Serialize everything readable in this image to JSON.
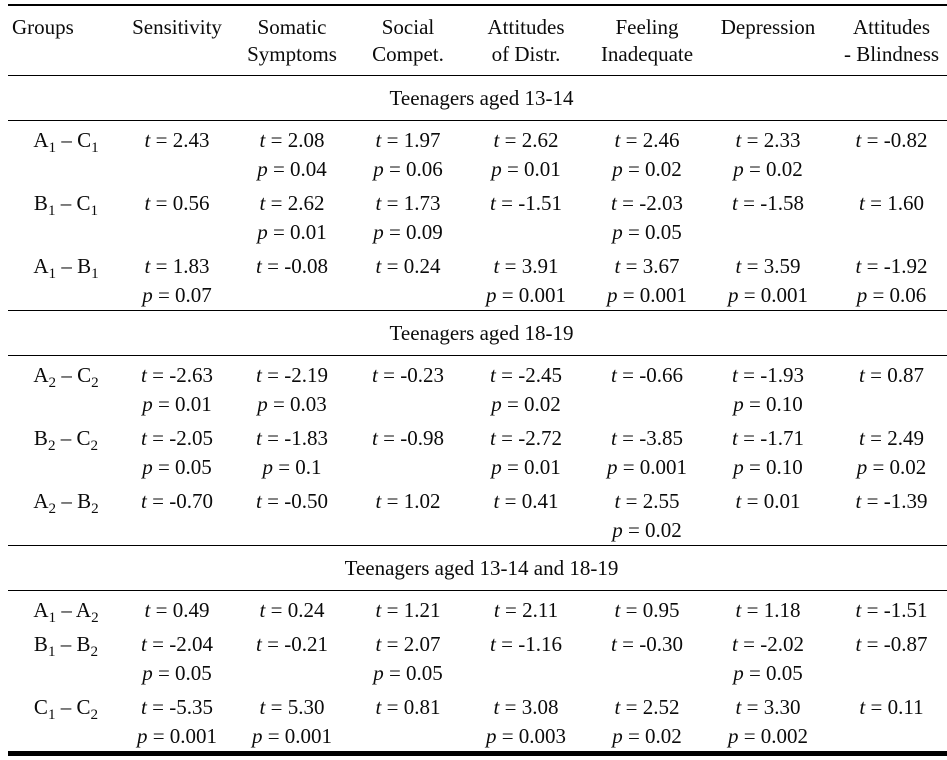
{
  "meta": {
    "stat_letters": {
      "t": "t",
      "p": "p"
    },
    "equals": "=",
    "group_separator": "–",
    "text_color": "#0b0b0b",
    "rule_color": "#000000"
  },
  "table": {
    "columns": [
      {
        "id": "groups",
        "lines": [
          "Groups"
        ]
      },
      {
        "id": "sensitivity",
        "lines": [
          "Sensitivity"
        ]
      },
      {
        "id": "somatic-symptoms",
        "lines": [
          "Somatic",
          "Symptoms"
        ]
      },
      {
        "id": "social-competence",
        "lines": [
          "Social",
          "Compet."
        ]
      },
      {
        "id": "attitudes-of-distr",
        "lines": [
          "Attitudes",
          "of Distr."
        ]
      },
      {
        "id": "feeling-inadequate",
        "lines": [
          "Feeling",
          "Inadequate"
        ]
      },
      {
        "id": "depression",
        "lines": [
          "Depression"
        ]
      },
      {
        "id": "attitudes-blindness",
        "lines": [
          "Attitudes",
          "- Blindness"
        ]
      }
    ],
    "sections": [
      {
        "title": "Teenagers aged 13-14",
        "rows": [
          {
            "group": {
              "g1": "A",
              "s1": "1",
              "g2": "C",
              "s2": "1"
            },
            "cells": [
              {
                "t": "2.43"
              },
              {
                "t": "2.08",
                "p": "0.04"
              },
              {
                "t": "1.97",
                "p": "0.06"
              },
              {
                "t": "2.62",
                "p": "0.01"
              },
              {
                "t": "2.46",
                "p": "0.02"
              },
              {
                "t": "2.33",
                "p": "0.02"
              },
              {
                "t": "-0.82"
              }
            ]
          },
          {
            "group": {
              "g1": "B",
              "s1": "1",
              "g2": "C",
              "s2": "1"
            },
            "cells": [
              {
                "t": "0.56"
              },
              {
                "t": "2.62",
                "p": "0.01"
              },
              {
                "t": "1.73",
                "p": "0.09"
              },
              {
                "t": "-1.51"
              },
              {
                "t": "-2.03",
                "p": "0.05"
              },
              {
                "t": "-1.58"
              },
              {
                "t": "1.60"
              }
            ]
          },
          {
            "group": {
              "g1": "A",
              "s1": "1",
              "g2": "B",
              "s2": "1"
            },
            "cells": [
              {
                "t": "1.83",
                "p": "0.07"
              },
              {
                "t": "-0.08"
              },
              {
                "t": "0.24"
              },
              {
                "t": "3.91",
                "p": "0.001"
              },
              {
                "t": "3.67",
                "p": "0.001"
              },
              {
                "t": "3.59",
                "p": "0.001"
              },
              {
                "t": "-1.92",
                "p": "0.06"
              }
            ]
          }
        ]
      },
      {
        "title": "Teenagers aged 18-19",
        "rows": [
          {
            "group": {
              "g1": "A",
              "s1": "2",
              "g2": "C",
              "s2": "2"
            },
            "cells": [
              {
                "t": "-2.63",
                "p": "0.01"
              },
              {
                "t": "-2.19",
                "p": "0.03"
              },
              {
                "t": "-0.23"
              },
              {
                "t": "-2.45",
                "p": "0.02"
              },
              {
                "t": "-0.66"
              },
              {
                "t": "-1.93",
                "p": "0.10"
              },
              {
                "t": "0.87"
              }
            ]
          },
          {
            "group": {
              "g1": "B",
              "s1": "2",
              "g2": "C",
              "s2": "2"
            },
            "cells": [
              {
                "t": "-2.05",
                "p": "0.05"
              },
              {
                "t": "-1.83",
                "p": "0.1"
              },
              {
                "t": "-0.98"
              },
              {
                "t": "-2.72",
                "p": "0.01"
              },
              {
                "t": "-3.85",
                "p": "0.001"
              },
              {
                "t": "-1.71",
                "p": "0.10"
              },
              {
                "t": "2.49",
                "p": "0.02"
              }
            ]
          },
          {
            "group": {
              "g1": "A",
              "s1": "2",
              "g2": "B",
              "s2": "2"
            },
            "cells": [
              {
                "t": "-0.70"
              },
              {
                "t": "-0.50"
              },
              {
                "t": "1.02"
              },
              {
                "t": "0.41"
              },
              {
                "t": "2.55",
                "p": "0.02"
              },
              {
                "t": "0.01"
              },
              {
                "t": "-1.39"
              }
            ]
          }
        ]
      },
      {
        "title": "Teenagers aged 13-14 and 18-19",
        "rows": [
          {
            "group": {
              "g1": "A",
              "s1": "1",
              "g2": "A",
              "s2": "2"
            },
            "cells": [
              {
                "t": "0.49"
              },
              {
                "t": "0.24"
              },
              {
                "t": "1.21"
              },
              {
                "t": "2.11"
              },
              {
                "t": "0.95"
              },
              {
                "t": "1.18"
              },
              {
                "t": "-1.51"
              }
            ]
          },
          {
            "group": {
              "g1": "B",
              "s1": "1",
              "g2": "B",
              "s2": "2"
            },
            "cells": [
              {
                "t": "-2.04",
                "p": "0.05"
              },
              {
                "t": "-0.21"
              },
              {
                "t": "2.07",
                "p": "0.05"
              },
              {
                "t": "-1.16"
              },
              {
                "t": "-0.30"
              },
              {
                "t": "-2.02",
                "p": "0.05"
              },
              {
                "t": "-0.87"
              }
            ]
          },
          {
            "group": {
              "g1": "C",
              "s1": "1",
              "g2": "C",
              "s2": "2"
            },
            "cells": [
              {
                "t": "-5.35",
                "p": "0.001"
              },
              {
                "t": "5.30",
                "p": "0.001"
              },
              {
                "t": "0.81"
              },
              {
                "t": "3.08",
                "p": "0.003"
              },
              {
                "t": "2.52",
                "p": "0.02"
              },
              {
                "t": "3.30",
                "p": "0.002"
              },
              {
                "t": "0.11"
              }
            ]
          }
        ]
      }
    ]
  }
}
